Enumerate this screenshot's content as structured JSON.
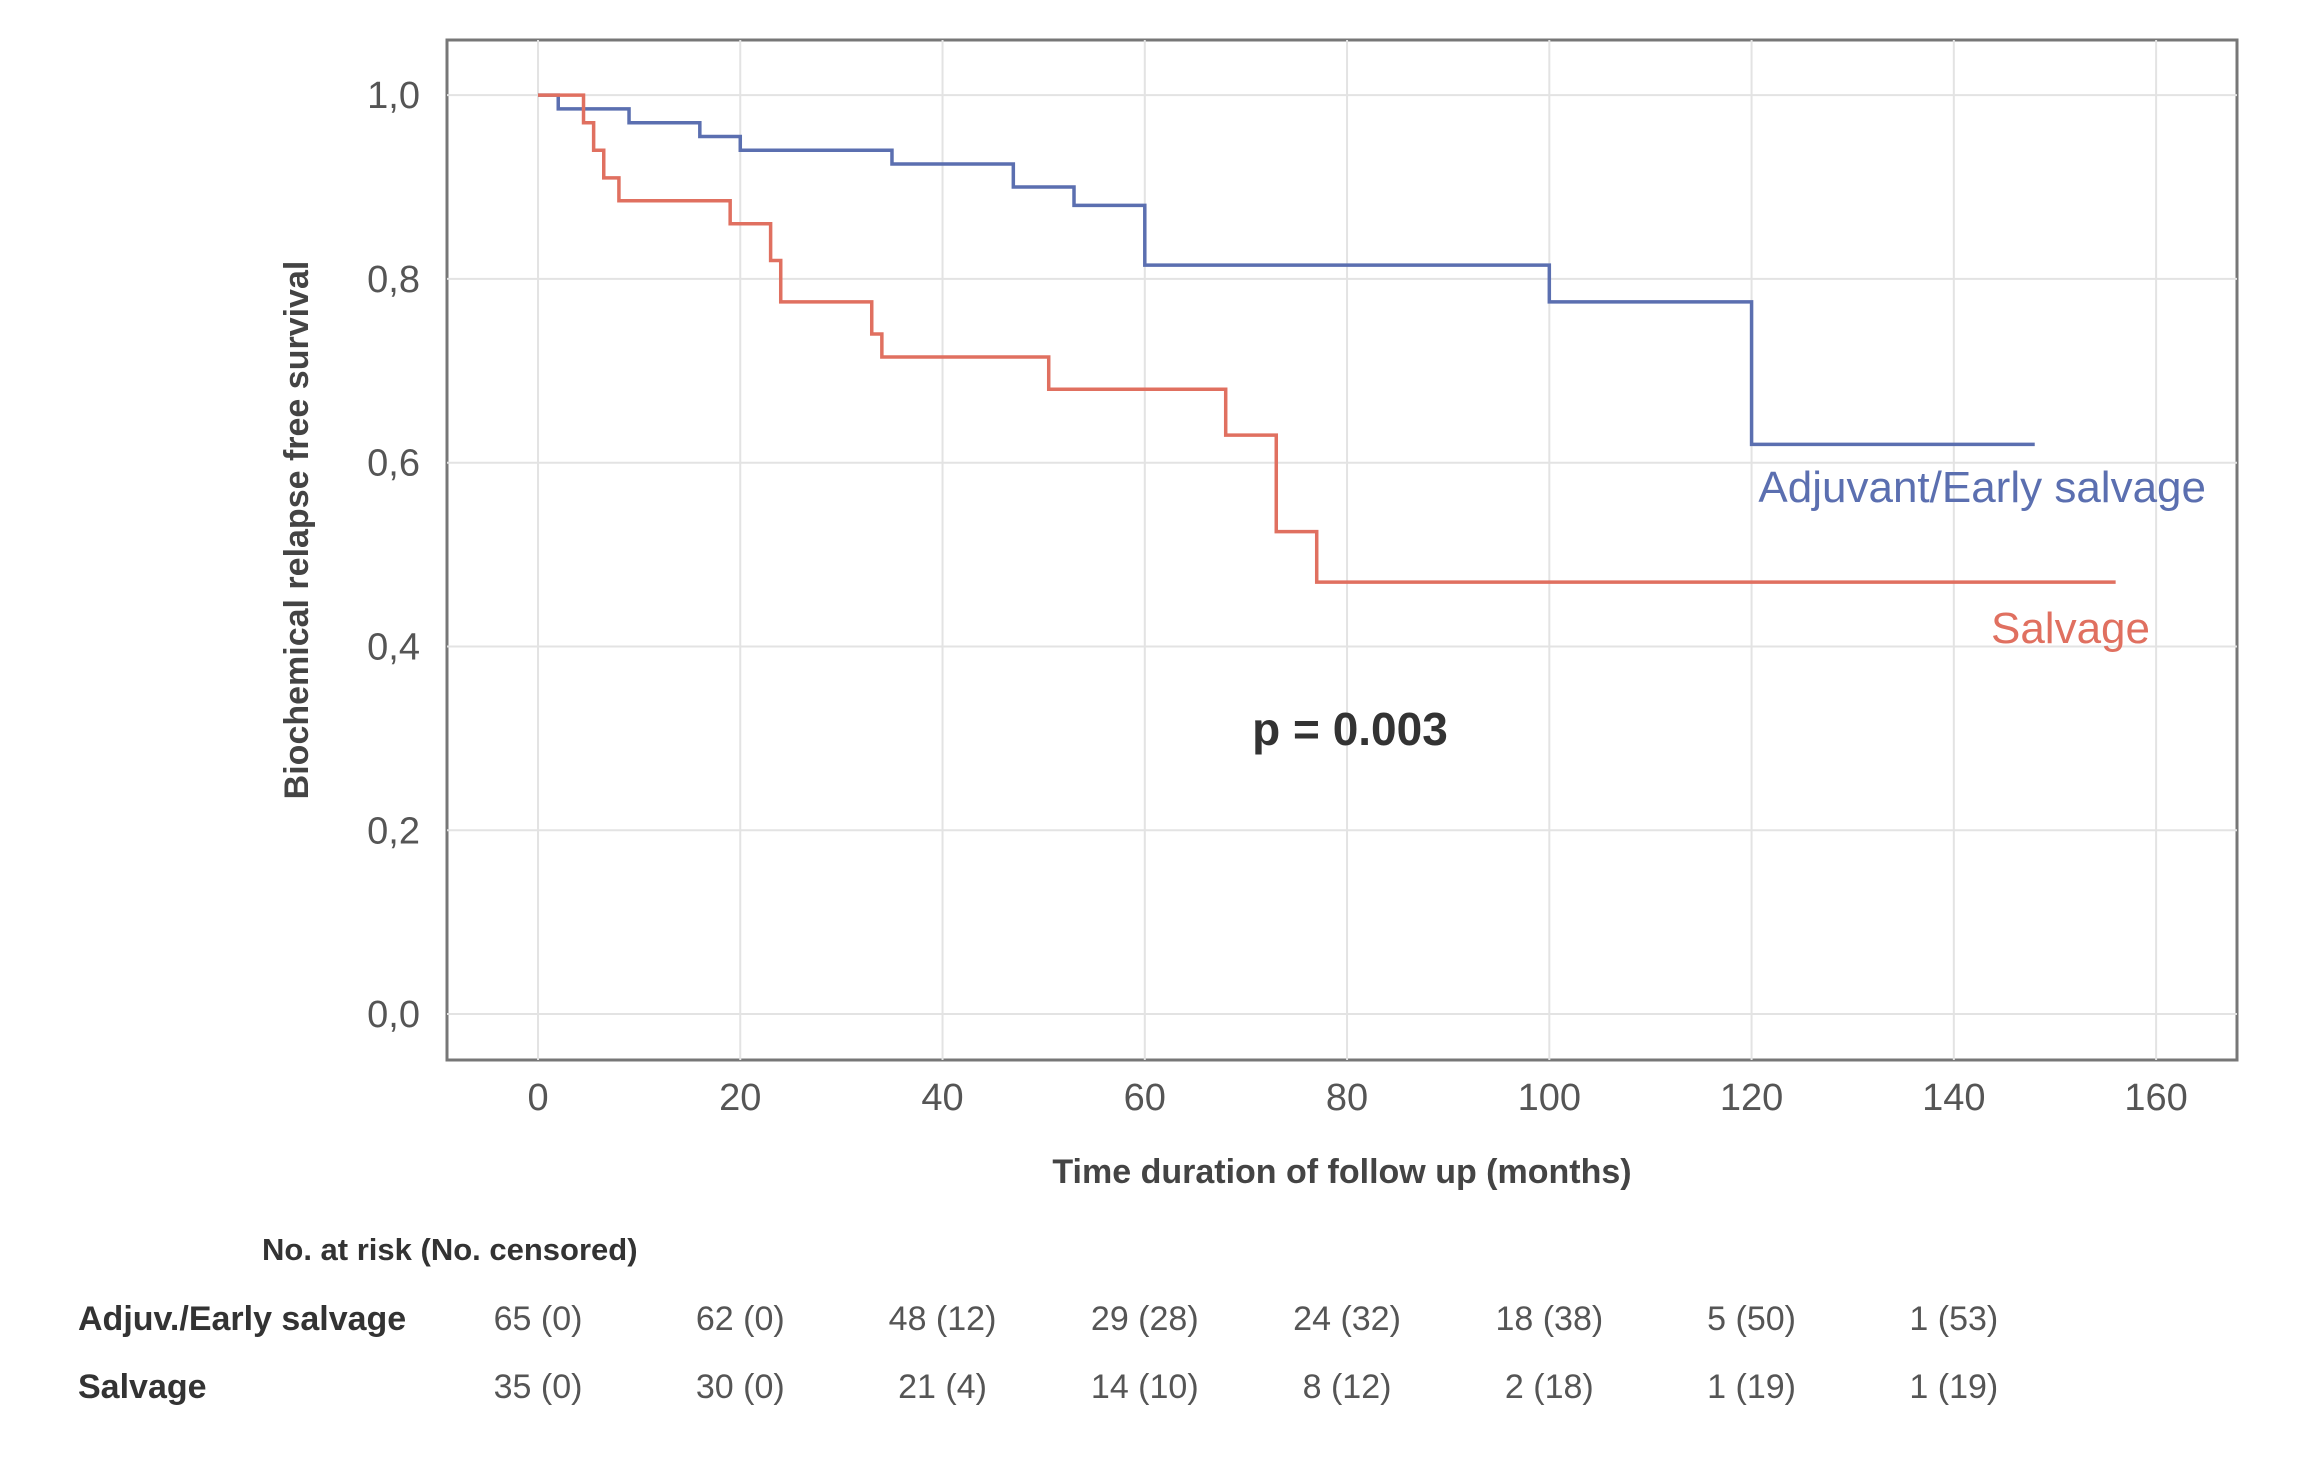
{
  "chart_data": {
    "type": "line",
    "subtype": "kaplan-meier step",
    "xlabel": "Time duration of follow up (months)",
    "ylabel": "Biochemical relapse free survival",
    "xlim": [
      -9,
      168
    ],
    "ylim": [
      -0.05,
      1.06
    ],
    "x_ticks": [
      "0",
      "20",
      "40",
      "60",
      "80",
      "100",
      "120",
      "140",
      "160"
    ],
    "x_tick_values": [
      0,
      20,
      40,
      60,
      80,
      100,
      120,
      140,
      160
    ],
    "y_ticks": [
      "0,0",
      "0,2",
      "0,4",
      "0,6",
      "0,8",
      "1,0"
    ],
    "y_tick_values": [
      0,
      0.2,
      0.4,
      0.6,
      0.8,
      1.0
    ],
    "grid": true,
    "annotation": "p = 0.003",
    "series": [
      {
        "name": "Adjuvant/Early salvage",
        "color": "#5b6fb0",
        "steps": [
          [
            0,
            1.0
          ],
          [
            2,
            0.985
          ],
          [
            9,
            0.97
          ],
          [
            16,
            0.955
          ],
          [
            20,
            0.94
          ],
          [
            35,
            0.925
          ],
          [
            47,
            0.9
          ],
          [
            53,
            0.88
          ],
          [
            60,
            0.815
          ],
          [
            100,
            0.775
          ],
          [
            120,
            0.62
          ],
          [
            148,
            0.62
          ]
        ]
      },
      {
        "name": "Salvage",
        "color": "#e07060",
        "steps": [
          [
            0,
            1.0
          ],
          [
            4.5,
            0.97
          ],
          [
            5.5,
            0.94
          ],
          [
            6.5,
            0.91
          ],
          [
            8,
            0.885
          ],
          [
            19,
            0.86
          ],
          [
            23,
            0.82
          ],
          [
            24,
            0.775
          ],
          [
            33,
            0.74
          ],
          [
            34,
            0.715
          ],
          [
            50.5,
            0.68
          ],
          [
            68,
            0.63
          ],
          [
            73,
            0.525
          ],
          [
            77,
            0.47
          ],
          [
            156,
            0.47
          ]
        ]
      }
    ],
    "risk_table": {
      "header": "No. at risk (No. censored)",
      "rows": [
        {
          "label": "Adjuv./Early salvage",
          "values": [
            "65 (0)",
            "62 (0)",
            "48 (12)",
            "29 (28)",
            "24 (32)",
            "18 (38)",
            "5 (50)",
            "1 (53)"
          ]
        },
        {
          "label": "Salvage",
          "values": [
            "35 (0)",
            "30 (0)",
            "21 (4)",
            "14 (10)",
            "8 (12)",
            "2 (18)",
            "1 (19)",
            "1 (19)"
          ]
        }
      ],
      "times": [
        0,
        20,
        40,
        60,
        80,
        100,
        120,
        140
      ]
    }
  }
}
